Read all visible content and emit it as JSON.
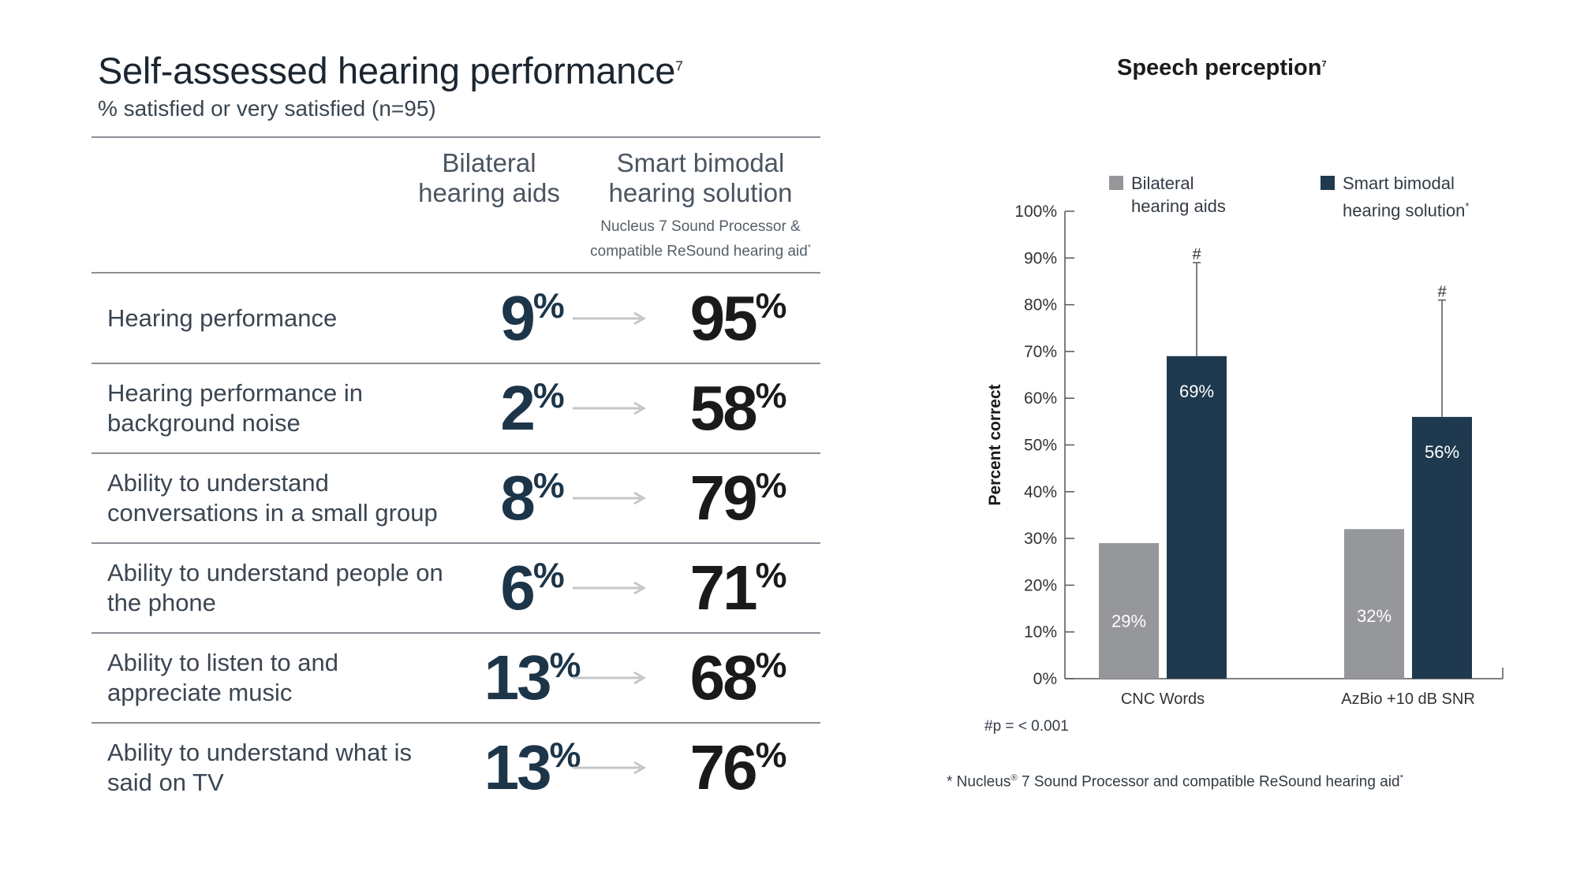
{
  "table": {
    "title": "Self-assessed hearing performance",
    "title_ref": "7",
    "subtitle": "% satisfied or very satisfied (n=95)",
    "columns": [
      {
        "label_line1": "Bilateral",
        "label_line2": "hearing aids"
      },
      {
        "label_line1": "Smart bimodal",
        "label_line2": "hearing solution",
        "note_line1": "Nucleus 7 Sound Processor &",
        "note_line2": "compatible ReSound hearing aid",
        "note_ref": "*"
      }
    ],
    "rows": [
      {
        "label": "Hearing performance",
        "before": "9",
        "after": "95"
      },
      {
        "label": "Hearing performance in background noise",
        "before": "2",
        "after": "58"
      },
      {
        "label": "Ability to understand conversations in a small group",
        "before": "8",
        "after": "79"
      },
      {
        "label": "Ability to understand people on the phone",
        "before": "6",
        "after": "71"
      },
      {
        "label": "Ability to listen to and appreciate music",
        "before": "13",
        "after": "68"
      },
      {
        "label": "Ability to understand what is said on TV",
        "before": "13",
        "after": "76"
      }
    ],
    "percent_sign": "%",
    "colors": {
      "before_value": "#1d3549",
      "after_value": "#1a1a1a",
      "arrow": "#c4c7ca"
    }
  },
  "chart_data": {
    "type": "bar",
    "title": "Speech perception",
    "title_ref": "7",
    "categories": [
      "CNC Words",
      "AzBio +10 dB SNR"
    ],
    "series": [
      {
        "name": "Bilateral hearing aids",
        "name_line1": "Bilateral",
        "name_line2": "hearing aids",
        "values": [
          29,
          32
        ],
        "labels": [
          "29%",
          "32%"
        ],
        "color": "#96979a"
      },
      {
        "name": "Smart bimodal hearing solution",
        "name_line1": "Smart bimodal",
        "name_line2": "hearing solution",
        "name_ref": "*",
        "values": [
          69,
          56
        ],
        "labels": [
          "69%",
          "56%"
        ],
        "color": "#1f3a4f",
        "error_upper": [
          89,
          81
        ],
        "significance": [
          "#",
          "#"
        ]
      }
    ],
    "ylabel": "Percent correct",
    "ylim": [
      0,
      100
    ],
    "yticks": [
      0,
      10,
      20,
      30,
      40,
      50,
      60,
      70,
      80,
      90,
      100
    ],
    "ytick_labels": [
      "0%",
      "10%",
      "20%",
      "30%",
      "40%",
      "50%",
      "60%",
      "70%",
      "80%",
      "90%",
      "100%"
    ],
    "grid": false,
    "legend_position": "top"
  },
  "notes": {
    "significance": "#p = < 0.001",
    "footnote_prefix": "* Nucleus",
    "footnote_mark": "®",
    "footnote_rest": " 7 Sound Processor and compatible ReSound hearing aid",
    "footnote_ref": "*"
  }
}
